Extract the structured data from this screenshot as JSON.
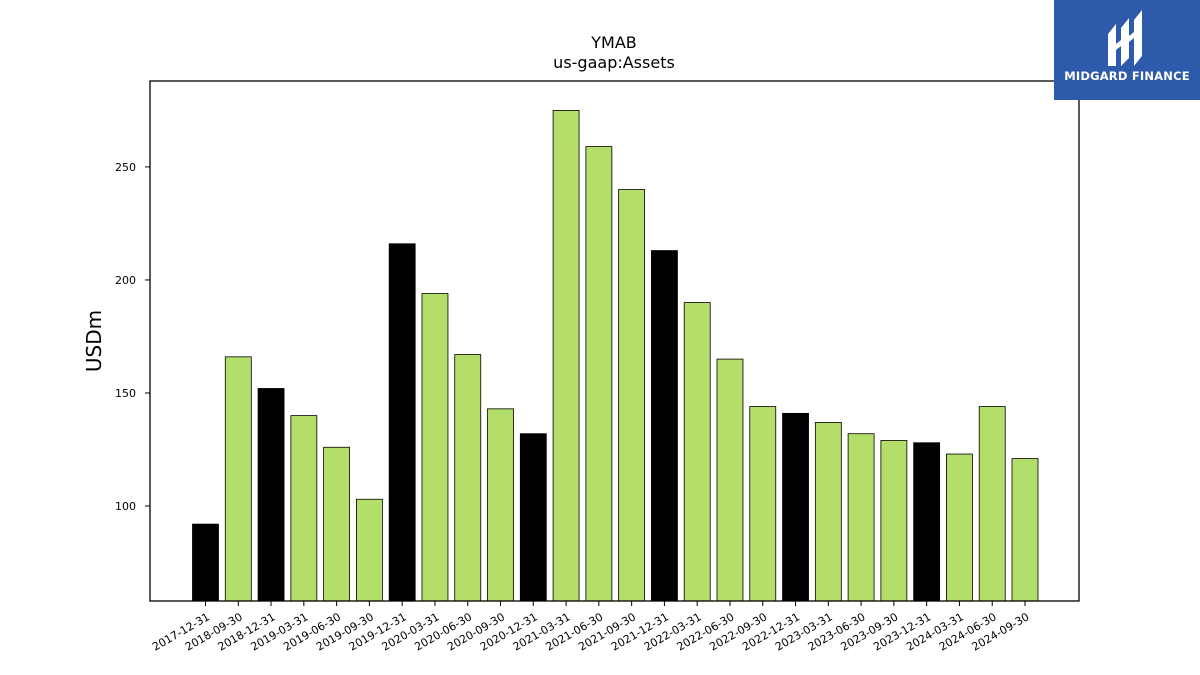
{
  "brand": {
    "name": "MIDGARD FINANCE",
    "color": "#2e5aac",
    "icon": "midgard-logo-mark"
  },
  "chart_data": {
    "type": "bar",
    "title": "YMAB",
    "subtitle": "us-gaap:Assets",
    "xlabel": "",
    "ylabel": "USDm",
    "ylim": [
      58,
      288
    ],
    "yticks": [
      100,
      150,
      200,
      250
    ],
    "grid": false,
    "colors": {
      "quarter": "#b3de69",
      "year_end": "#000000",
      "edge": "#000000"
    },
    "categories": [
      "2017-12-31",
      "2018-09-30",
      "2018-12-31",
      "2019-03-31",
      "2019-06-30",
      "2019-09-30",
      "2019-12-31",
      "2020-03-31",
      "2020-06-30",
      "2020-09-30",
      "2020-12-31",
      "2021-03-31",
      "2021-06-30",
      "2021-09-30",
      "2021-12-31",
      "2022-03-31",
      "2022-06-30",
      "2022-09-30",
      "2022-12-31",
      "2023-03-31",
      "2023-06-30",
      "2023-09-30",
      "2023-12-31",
      "2024-03-31",
      "2024-06-30",
      "2024-09-30"
    ],
    "values": [
      92,
      166,
      152,
      140,
      126,
      103,
      216,
      194,
      167,
      143,
      132,
      275,
      259,
      240,
      213,
      190,
      165,
      144,
      141,
      137,
      132,
      129,
      128,
      123,
      144,
      121
    ],
    "year_end": [
      true,
      false,
      true,
      false,
      false,
      false,
      true,
      false,
      false,
      false,
      true,
      false,
      false,
      false,
      true,
      false,
      false,
      false,
      true,
      false,
      false,
      false,
      true,
      false,
      false,
      false
    ]
  }
}
